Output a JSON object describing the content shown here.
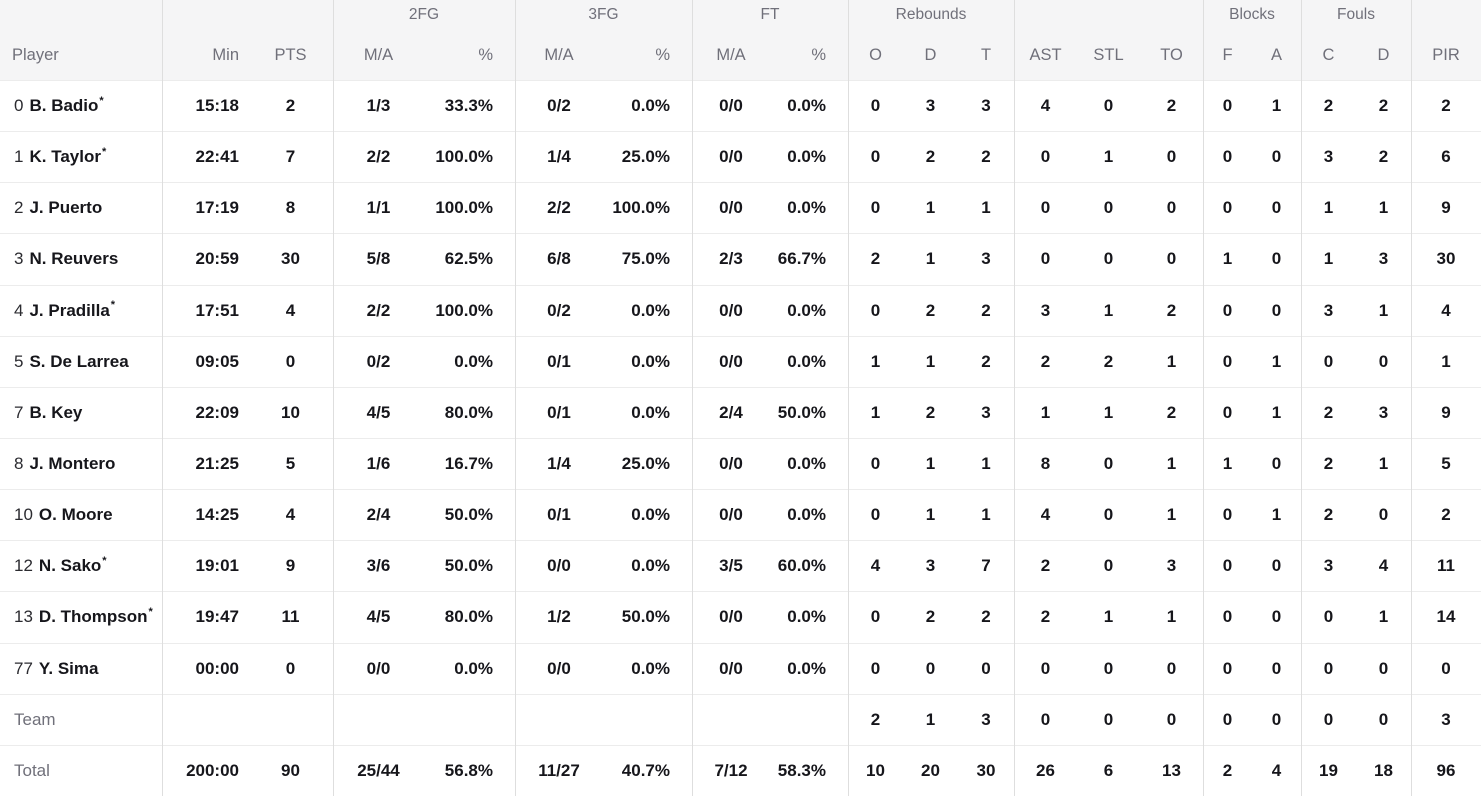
{
  "starter_marker": "*",
  "colors": {
    "header_bg": "#f5f5f6",
    "header_text": "#70707a",
    "row_divider": "#ececec",
    "column_divider": "#dedede",
    "data_text": "#16161b",
    "muted_text": "#70707a",
    "row_bg": "#ffffff"
  },
  "table": {
    "groups": [
      {
        "label": "",
        "span": 3
      },
      {
        "label": "2FG",
        "span": 2
      },
      {
        "label": "3FG",
        "span": 2
      },
      {
        "label": "FT",
        "span": 2
      },
      {
        "label": "Rebounds",
        "span": 3
      },
      {
        "label": "",
        "span": 3
      },
      {
        "label": "Blocks",
        "span": 2
      },
      {
        "label": "Fouls",
        "span": 2
      },
      {
        "label": "",
        "span": 1
      }
    ],
    "columns": [
      {
        "key": "player",
        "label": "Player"
      },
      {
        "key": "min",
        "label": "Min"
      },
      {
        "key": "pts",
        "label": "PTS"
      },
      {
        "key": "fg2_ma",
        "label": "M/A"
      },
      {
        "key": "fg2_pct",
        "label": "%"
      },
      {
        "key": "fg3_ma",
        "label": "M/A"
      },
      {
        "key": "fg3_pct",
        "label": "%"
      },
      {
        "key": "ft_ma",
        "label": "M/A"
      },
      {
        "key": "ft_pct",
        "label": "%"
      },
      {
        "key": "reb_o",
        "label": "O"
      },
      {
        "key": "reb_d",
        "label": "D"
      },
      {
        "key": "reb_t",
        "label": "T"
      },
      {
        "key": "ast",
        "label": "AST"
      },
      {
        "key": "stl",
        "label": "STL"
      },
      {
        "key": "to",
        "label": "TO"
      },
      {
        "key": "blk_f",
        "label": "F"
      },
      {
        "key": "blk_a",
        "label": "A"
      },
      {
        "key": "foul_c",
        "label": "C"
      },
      {
        "key": "foul_d",
        "label": "D"
      },
      {
        "key": "pir",
        "label": "PIR"
      }
    ],
    "rows": [
      {
        "type": "player",
        "number": "0",
        "name": "B. Badio",
        "starter": true,
        "cells": {
          "min": "15:18",
          "pts": "2",
          "fg2_ma": "1/3",
          "fg2_pct": "33.3%",
          "fg3_ma": "0/2",
          "fg3_pct": "0.0%",
          "ft_ma": "0/0",
          "ft_pct": "0.0%",
          "reb_o": "0",
          "reb_d": "3",
          "reb_t": "3",
          "ast": "4",
          "stl": "0",
          "to": "2",
          "blk_f": "0",
          "blk_a": "1",
          "foul_c": "2",
          "foul_d": "2",
          "pir": "2"
        }
      },
      {
        "type": "player",
        "number": "1",
        "name": "K. Taylor",
        "starter": true,
        "cells": {
          "min": "22:41",
          "pts": "7",
          "fg2_ma": "2/2",
          "fg2_pct": "100.0%",
          "fg3_ma": "1/4",
          "fg3_pct": "25.0%",
          "ft_ma": "0/0",
          "ft_pct": "0.0%",
          "reb_o": "0",
          "reb_d": "2",
          "reb_t": "2",
          "ast": "0",
          "stl": "1",
          "to": "0",
          "blk_f": "0",
          "blk_a": "0",
          "foul_c": "3",
          "foul_d": "2",
          "pir": "6"
        }
      },
      {
        "type": "player",
        "number": "2",
        "name": "J. Puerto",
        "starter": false,
        "cells": {
          "min": "17:19",
          "pts": "8",
          "fg2_ma": "1/1",
          "fg2_pct": "100.0%",
          "fg3_ma": "2/2",
          "fg3_pct": "100.0%",
          "ft_ma": "0/0",
          "ft_pct": "0.0%",
          "reb_o": "0",
          "reb_d": "1",
          "reb_t": "1",
          "ast": "0",
          "stl": "0",
          "to": "0",
          "blk_f": "0",
          "blk_a": "0",
          "foul_c": "1",
          "foul_d": "1",
          "pir": "9"
        }
      },
      {
        "type": "player",
        "number": "3",
        "name": "N. Reuvers",
        "starter": false,
        "cells": {
          "min": "20:59",
          "pts": "30",
          "fg2_ma": "5/8",
          "fg2_pct": "62.5%",
          "fg3_ma": "6/8",
          "fg3_pct": "75.0%",
          "ft_ma": "2/3",
          "ft_pct": "66.7%",
          "reb_o": "2",
          "reb_d": "1",
          "reb_t": "3",
          "ast": "0",
          "stl": "0",
          "to": "0",
          "blk_f": "1",
          "blk_a": "0",
          "foul_c": "1",
          "foul_d": "3",
          "pir": "30"
        }
      },
      {
        "type": "player",
        "number": "4",
        "name": "J. Pradilla",
        "starter": true,
        "cells": {
          "min": "17:51",
          "pts": "4",
          "fg2_ma": "2/2",
          "fg2_pct": "100.0%",
          "fg3_ma": "0/2",
          "fg3_pct": "0.0%",
          "ft_ma": "0/0",
          "ft_pct": "0.0%",
          "reb_o": "0",
          "reb_d": "2",
          "reb_t": "2",
          "ast": "3",
          "stl": "1",
          "to": "2",
          "blk_f": "0",
          "blk_a": "0",
          "foul_c": "3",
          "foul_d": "1",
          "pir": "4"
        }
      },
      {
        "type": "player",
        "number": "5",
        "name": "S. De Larrea",
        "starter": false,
        "cells": {
          "min": "09:05",
          "pts": "0",
          "fg2_ma": "0/2",
          "fg2_pct": "0.0%",
          "fg3_ma": "0/1",
          "fg3_pct": "0.0%",
          "ft_ma": "0/0",
          "ft_pct": "0.0%",
          "reb_o": "1",
          "reb_d": "1",
          "reb_t": "2",
          "ast": "2",
          "stl": "2",
          "to": "1",
          "blk_f": "0",
          "blk_a": "1",
          "foul_c": "0",
          "foul_d": "0",
          "pir": "1"
        }
      },
      {
        "type": "player",
        "number": "7",
        "name": "B. Key",
        "starter": false,
        "cells": {
          "min": "22:09",
          "pts": "10",
          "fg2_ma": "4/5",
          "fg2_pct": "80.0%",
          "fg3_ma": "0/1",
          "fg3_pct": "0.0%",
          "ft_ma": "2/4",
          "ft_pct": "50.0%",
          "reb_o": "1",
          "reb_d": "2",
          "reb_t": "3",
          "ast": "1",
          "stl": "1",
          "to": "2",
          "blk_f": "0",
          "blk_a": "1",
          "foul_c": "2",
          "foul_d": "3",
          "pir": "9"
        }
      },
      {
        "type": "player",
        "number": "8",
        "name": "J. Montero",
        "starter": false,
        "cells": {
          "min": "21:25",
          "pts": "5",
          "fg2_ma": "1/6",
          "fg2_pct": "16.7%",
          "fg3_ma": "1/4",
          "fg3_pct": "25.0%",
          "ft_ma": "0/0",
          "ft_pct": "0.0%",
          "reb_o": "0",
          "reb_d": "1",
          "reb_t": "1",
          "ast": "8",
          "stl": "0",
          "to": "1",
          "blk_f": "1",
          "blk_a": "0",
          "foul_c": "2",
          "foul_d": "1",
          "pir": "5"
        }
      },
      {
        "type": "player",
        "number": "10",
        "name": "O. Moore",
        "starter": false,
        "cells": {
          "min": "14:25",
          "pts": "4",
          "fg2_ma": "2/4",
          "fg2_pct": "50.0%",
          "fg3_ma": "0/1",
          "fg3_pct": "0.0%",
          "ft_ma": "0/0",
          "ft_pct": "0.0%",
          "reb_o": "0",
          "reb_d": "1",
          "reb_t": "1",
          "ast": "4",
          "stl": "0",
          "to": "1",
          "blk_f": "0",
          "blk_a": "1",
          "foul_c": "2",
          "foul_d": "0",
          "pir": "2"
        }
      },
      {
        "type": "player",
        "number": "12",
        "name": "N. Sako",
        "starter": true,
        "cells": {
          "min": "19:01",
          "pts": "9",
          "fg2_ma": "3/6",
          "fg2_pct": "50.0%",
          "fg3_ma": "0/0",
          "fg3_pct": "0.0%",
          "ft_ma": "3/5",
          "ft_pct": "60.0%",
          "reb_o": "4",
          "reb_d": "3",
          "reb_t": "7",
          "ast": "2",
          "stl": "0",
          "to": "3",
          "blk_f": "0",
          "blk_a": "0",
          "foul_c": "3",
          "foul_d": "4",
          "pir": "11"
        }
      },
      {
        "type": "player",
        "number": "13",
        "name": "D. Thompson",
        "starter": true,
        "cells": {
          "min": "19:47",
          "pts": "11",
          "fg2_ma": "4/5",
          "fg2_pct": "80.0%",
          "fg3_ma": "1/2",
          "fg3_pct": "50.0%",
          "ft_ma": "0/0",
          "ft_pct": "0.0%",
          "reb_o": "0",
          "reb_d": "2",
          "reb_t": "2",
          "ast": "2",
          "stl": "1",
          "to": "1",
          "blk_f": "0",
          "blk_a": "0",
          "foul_c": "0",
          "foul_d": "1",
          "pir": "14"
        }
      },
      {
        "type": "player",
        "number": "77",
        "name": "Y. Sima",
        "starter": false,
        "cells": {
          "min": "00:00",
          "pts": "0",
          "fg2_ma": "0/0",
          "fg2_pct": "0.0%",
          "fg3_ma": "0/0",
          "fg3_pct": "0.0%",
          "ft_ma": "0/0",
          "ft_pct": "0.0%",
          "reb_o": "0",
          "reb_d": "0",
          "reb_t": "0",
          "ast": "0",
          "stl": "0",
          "to": "0",
          "blk_f": "0",
          "blk_a": "0",
          "foul_c": "0",
          "foul_d": "0",
          "pir": "0"
        }
      },
      {
        "type": "team",
        "label": "Team",
        "cells": {
          "min": "",
          "pts": "",
          "fg2_ma": "",
          "fg2_pct": "",
          "fg3_ma": "",
          "fg3_pct": "",
          "ft_ma": "",
          "ft_pct": "",
          "reb_o": "2",
          "reb_d": "1",
          "reb_t": "3",
          "ast": "0",
          "stl": "0",
          "to": "0",
          "blk_f": "0",
          "blk_a": "0",
          "foul_c": "0",
          "foul_d": "0",
          "pir": "3"
        }
      },
      {
        "type": "total",
        "label": "Total",
        "cells": {
          "min": "200:00",
          "pts": "90",
          "fg2_ma": "25/44",
          "fg2_pct": "56.8%",
          "fg3_ma": "11/27",
          "fg3_pct": "40.7%",
          "ft_ma": "7/12",
          "ft_pct": "58.3%",
          "reb_o": "10",
          "reb_d": "20",
          "reb_t": "30",
          "ast": "26",
          "stl": "6",
          "to": "13",
          "blk_f": "2",
          "blk_a": "4",
          "foul_c": "19",
          "foul_d": "18",
          "pir": "96"
        }
      }
    ]
  }
}
